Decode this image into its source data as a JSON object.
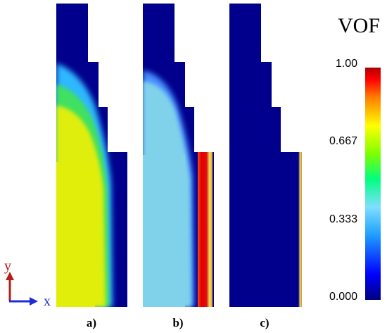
{
  "panels": [
    {
      "id": "a",
      "label": "a)"
    },
    {
      "id": "b",
      "label": "b)"
    },
    {
      "id": "c",
      "label": "c)"
    }
  ],
  "legend": {
    "title": "VOF",
    "ticks": [
      "1.00",
      "0.667",
      "0.333",
      "0.000"
    ],
    "tick_values": [
      1.0,
      0.667,
      0.333,
      0.0
    ],
    "colormap": [
      "#00007f",
      "#0000ff",
      "#1f9fff",
      "#7fdfff",
      "#00ff7f",
      "#7fff00",
      "#ffff00",
      "#ff7f00",
      "#ff0000",
      "#b00000"
    ]
  },
  "axes": {
    "x_label": "x",
    "y_label": "y",
    "x_color": "#1a2dd6",
    "y_color": "#b02018"
  },
  "colors": {
    "liquid_low": "#00008c",
    "liquid_a": "#e0ee0a",
    "liquid_b": "#7fd2ea",
    "wall_red": "#e01010"
  }
}
